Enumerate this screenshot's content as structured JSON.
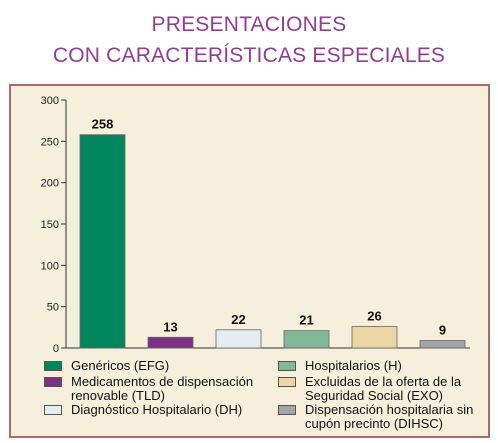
{
  "title_line1": "PRESENTACIONES",
  "title_line2": "CON CARACTERÍSTICAS ESPECIALES",
  "chart_data": {
    "type": "bar",
    "categories": [
      "Genéricos (EFG)",
      "Medicamentos de dispensación renovable (TLD)",
      "Diagnóstico Hospitalario (DH)",
      "Hospitalarios (H)",
      "Excluidas de la oferta de la Seguridad Social (EXO)",
      "Dispensación hospitalaria sin cupón precinto (DIHSC)"
    ],
    "values": [
      258,
      13,
      22,
      21,
      26,
      9
    ],
    "colors": [
      "#00865a",
      "#7c2f84",
      "#e6ecf4",
      "#82b89a",
      "#ecd6a4",
      "#a4a4a4"
    ],
    "ylim": [
      0,
      300
    ],
    "yticks": [
      0,
      50,
      100,
      150,
      200,
      250,
      300
    ],
    "grid": false,
    "legend_position": "bottom"
  },
  "legend": [
    {
      "lines": [
        "Genéricos (EFG)"
      ],
      "color": "#00865a"
    },
    {
      "lines": [
        "Hospitalarios (H)"
      ],
      "color": "#82b89a"
    },
    {
      "lines": [
        "Medicamentos de dispensación",
        "renovable (TLD)"
      ],
      "color": "#7c2f84"
    },
    {
      "lines": [
        "Excluidas de la oferta de la",
        "Seguridad Social (EXO)"
      ],
      "color": "#ecd6a4"
    },
    {
      "lines": [
        "Diagnóstico Hospitalario (DH)"
      ],
      "color": "#e6ecf4"
    },
    {
      "lines": [
        "Dispensación hospitalaria sin",
        "cupón precinto (DIHSC)"
      ],
      "color": "#a4a4a4"
    }
  ]
}
